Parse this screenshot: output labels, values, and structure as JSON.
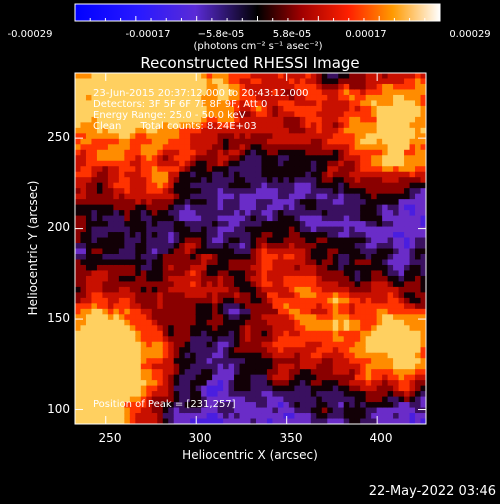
{
  "colorbar": {
    "tick_labels": [
      "-0.00029",
      "-0.00017",
      "−5.8e-05",
      "5.8e-05",
      "0.00017",
      "0.00029"
    ],
    "unit_label": "(photons cm⁻² s⁻¹ asec⁻²)"
  },
  "chart_data": {
    "type": "heatmap",
    "title": "Reconstructed RHESSI Image",
    "xlabel": "Heliocentric X (arcsec)",
    "ylabel": "Heliocentric Y (arcsec)",
    "x_ticks": [
      "250",
      "300",
      "350",
      "400"
    ],
    "y_ticks": [
      "100",
      "150",
      "200",
      "250"
    ],
    "x_tick_values": [
      250,
      300,
      350,
      400
    ],
    "y_tick_values": [
      100,
      150,
      200,
      250
    ],
    "xlim": [
      233,
      427
    ],
    "ylim": [
      92,
      286
    ],
    "value_range": [
      -0.00029,
      0.00029
    ],
    "annotations": [
      "23-Jun-2015 20:37:12.000 to 20:43:12.000",
      "Detectors: 3F 5F 6F 7F 8F 9F, Att 0",
      "Energy Range: 25.0 - 50.0 keV",
      "Clean      Total counts: 8.24E+03"
    ],
    "peak_label": "Position of Peak = [231,257]",
    "grid": false
  },
  "timestamp": "22-May-2022 03:46",
  "colors": {
    "background": "#000000",
    "foreground": "#ffffff"
  }
}
